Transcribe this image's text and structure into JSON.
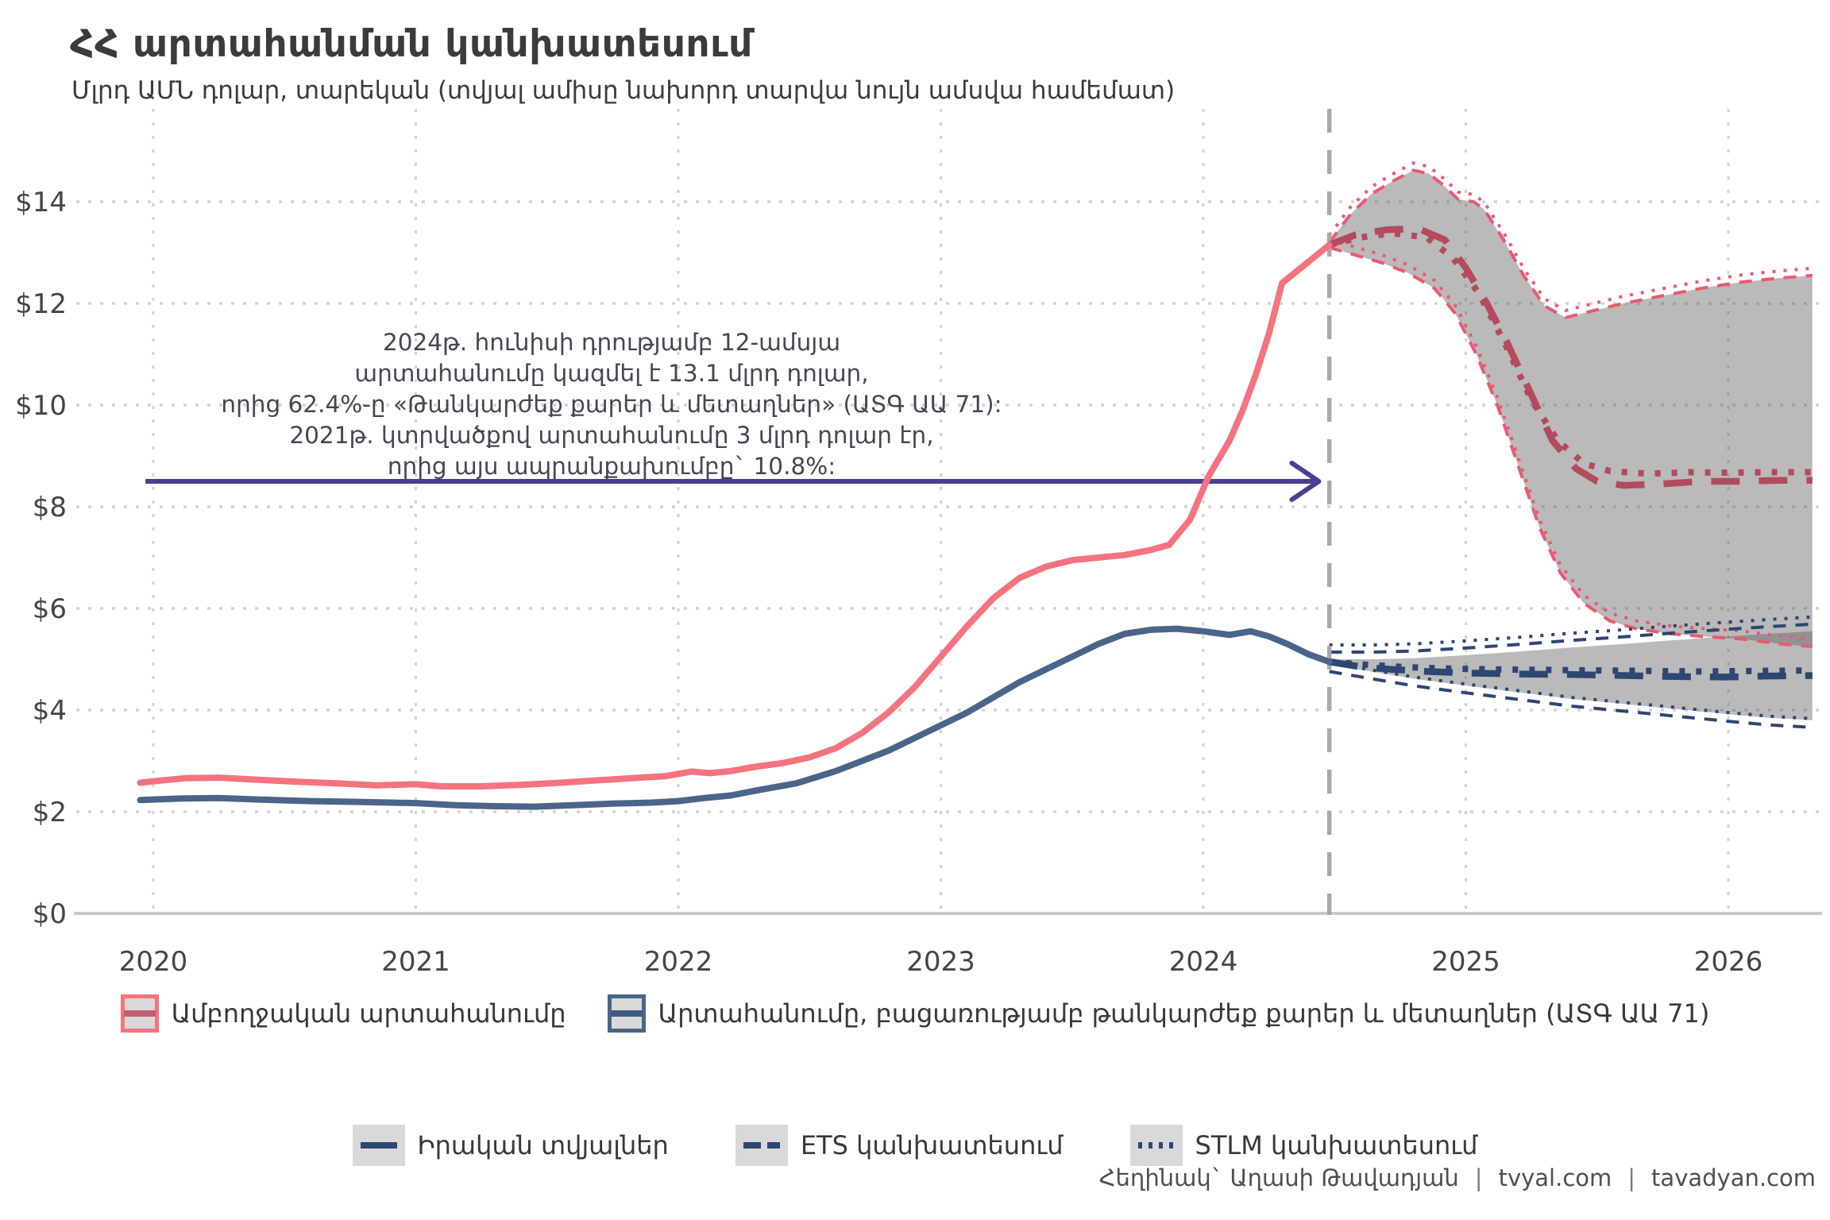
{
  "header": {
    "title": "ՀՀ արտահանման կանխատեսում",
    "subtitle": "Մլրդ ԱՄՆ դոլար, տարեկան (տվյալ ամիսը նախորդ տարվա նույն ամսվա համեմատ)"
  },
  "annotation": {
    "lines": [
      "2024թ. հունիսի դրությամբ 12-ամսյա",
      "արտահանումը կազմել է 13.1 մլրդ դոլար,",
      "որից 62.4%-ը «Թանկարժեք քարեր և մետաղներ» (ԱՏԳ ԱԱ 71):",
      "2021թ. կտրվածքով արտահանումը 3 մլրդ դոլար էր,",
      "որից այս ապրանքախումբը` 10.8%:"
    ]
  },
  "legend_main": {
    "items": [
      {
        "label": "Ամբողջական արտահանումը",
        "border_color": "#f4737f",
        "line_color": "#c2606f"
      },
      {
        "label": "Արտահանումը, բացառությամբ թանկարժեք քարեր և մետաղներ (ԱՏԳ ԱԱ 71)",
        "border_color": "#4b6489",
        "line_color": "#3f5a87"
      }
    ]
  },
  "legend_forecast": {
    "items": [
      {
        "label": "Իրական տվյալներ",
        "style": "solid"
      },
      {
        "label": "ETS կանխատեսում",
        "style": "dashed"
      },
      {
        "label": "STLM կանխատեսում",
        "style": "dotted"
      }
    ]
  },
  "footer": {
    "author": "Հեղինակ` Աղասի Թավադյան",
    "separator": "|",
    "links": [
      "tvyal.com",
      "tavadyan.com"
    ]
  },
  "colors": {
    "total_line": "#f4737f",
    "total_forecast": "#b34b5d",
    "band_edge_red": "#ea5a70",
    "excl_line": "#4b6489",
    "excl_forecast": "#2e4672",
    "band_fill": "rgba(90,90,90,0.42)",
    "grid": "#d2d2d2",
    "axis_line": "#c9c9c9",
    "divider": "#a8a8a8",
    "arrow": "#4e3d92",
    "tick_text": "#454545"
  },
  "chart_data": {
    "type": "line",
    "title": "ՀՀ արտահանման կանխատեսում",
    "ylabel": "Մլրդ ԱՄՆ դոլար",
    "xlim": [
      2019.85,
      2026.4
    ],
    "ylim": [
      0,
      15.3
    ],
    "grid": true,
    "forecast_start": 2024.48,
    "arrow": {
      "y_value": 8.5,
      "x_start": 2019.97,
      "x_end": 2024.44
    },
    "x_ticks": [
      {
        "v": 2020,
        "label": "2020"
      },
      {
        "v": 2021,
        "label": "2021"
      },
      {
        "v": 2022,
        "label": "2022"
      },
      {
        "v": 2023,
        "label": "2023"
      },
      {
        "v": 2024,
        "label": "2024"
      },
      {
        "v": 2025,
        "label": "2025"
      },
      {
        "v": 2026,
        "label": "2026"
      }
    ],
    "y_ticks": [
      {
        "v": 0,
        "label": "$0"
      },
      {
        "v": 2,
        "label": "$2"
      },
      {
        "v": 4,
        "label": "$4"
      },
      {
        "v": 6,
        "label": "$6"
      },
      {
        "v": 8,
        "label": "$8"
      },
      {
        "v": 10,
        "label": "$10"
      },
      {
        "v": 12,
        "label": "$12"
      },
      {
        "v": 14,
        "label": "$14"
      }
    ],
    "series": [
      {
        "name": "total_exports_actual",
        "points": [
          [
            2019.95,
            2.57
          ],
          [
            2020.0,
            2.6
          ],
          [
            2020.12,
            2.66
          ],
          [
            2020.25,
            2.67
          ],
          [
            2020.4,
            2.63
          ],
          [
            2020.55,
            2.59
          ],
          [
            2020.7,
            2.56
          ],
          [
            2020.85,
            2.52
          ],
          [
            2021.0,
            2.54
          ],
          [
            2021.1,
            2.5
          ],
          [
            2021.25,
            2.5
          ],
          [
            2021.4,
            2.53
          ],
          [
            2021.55,
            2.57
          ],
          [
            2021.7,
            2.62
          ],
          [
            2021.85,
            2.67
          ],
          [
            2021.95,
            2.7
          ],
          [
            2022.05,
            2.79
          ],
          [
            2022.12,
            2.76
          ],
          [
            2022.2,
            2.8
          ],
          [
            2022.3,
            2.89
          ],
          [
            2022.4,
            2.96
          ],
          [
            2022.5,
            3.07
          ],
          [
            2022.6,
            3.25
          ],
          [
            2022.7,
            3.55
          ],
          [
            2022.8,
            3.95
          ],
          [
            2022.9,
            4.45
          ],
          [
            2023.0,
            5.05
          ],
          [
            2023.1,
            5.65
          ],
          [
            2023.2,
            6.2
          ],
          [
            2023.3,
            6.6
          ],
          [
            2023.4,
            6.82
          ],
          [
            2023.5,
            6.95
          ],
          [
            2023.6,
            7.0
          ],
          [
            2023.7,
            7.05
          ],
          [
            2023.8,
            7.15
          ],
          [
            2023.87,
            7.25
          ],
          [
            2023.95,
            7.75
          ],
          [
            2024.02,
            8.6
          ],
          [
            2024.06,
            8.95
          ],
          [
            2024.1,
            9.3
          ],
          [
            2024.15,
            9.9
          ],
          [
            2024.2,
            10.6
          ],
          [
            2024.25,
            11.4
          ],
          [
            2024.3,
            12.4
          ],
          [
            2024.36,
            12.65
          ],
          [
            2024.42,
            12.9
          ],
          [
            2024.48,
            13.15
          ]
        ]
      },
      {
        "name": "excl_gems_actual",
        "points": [
          [
            2019.95,
            2.23
          ],
          [
            2020.1,
            2.26
          ],
          [
            2020.25,
            2.27
          ],
          [
            2020.4,
            2.24
          ],
          [
            2020.6,
            2.21
          ],
          [
            2020.8,
            2.19
          ],
          [
            2021.0,
            2.17
          ],
          [
            2021.15,
            2.13
          ],
          [
            2021.3,
            2.11
          ],
          [
            2021.45,
            2.1
          ],
          [
            2021.6,
            2.13
          ],
          [
            2021.75,
            2.16
          ],
          [
            2021.9,
            2.18
          ],
          [
            2022.0,
            2.21
          ],
          [
            2022.1,
            2.27
          ],
          [
            2022.2,
            2.32
          ],
          [
            2022.3,
            2.42
          ],
          [
            2022.45,
            2.56
          ],
          [
            2022.6,
            2.8
          ],
          [
            2022.7,
            3.0
          ],
          [
            2022.8,
            3.2
          ],
          [
            2022.9,
            3.45
          ],
          [
            2023.0,
            3.7
          ],
          [
            2023.1,
            3.95
          ],
          [
            2023.2,
            4.25
          ],
          [
            2023.3,
            4.55
          ],
          [
            2023.4,
            4.8
          ],
          [
            2023.5,
            5.05
          ],
          [
            2023.6,
            5.3
          ],
          [
            2023.7,
            5.5
          ],
          [
            2023.8,
            5.58
          ],
          [
            2023.9,
            5.6
          ],
          [
            2024.0,
            5.55
          ],
          [
            2024.1,
            5.48
          ],
          [
            2024.18,
            5.55
          ],
          [
            2024.25,
            5.45
          ],
          [
            2024.32,
            5.3
          ],
          [
            2024.4,
            5.1
          ],
          [
            2024.48,
            4.95
          ]
        ]
      },
      {
        "name": "total_ets_forecast",
        "points": [
          [
            2024.48,
            13.15
          ],
          [
            2024.58,
            13.35
          ],
          [
            2024.7,
            13.45
          ],
          [
            2024.82,
            13.47
          ],
          [
            2024.92,
            13.25
          ],
          [
            2025.0,
            12.7
          ],
          [
            2025.08,
            12.0
          ],
          [
            2025.16,
            11.2
          ],
          [
            2025.25,
            10.2
          ],
          [
            2025.33,
            9.3
          ],
          [
            2025.42,
            8.75
          ],
          [
            2025.5,
            8.5
          ],
          [
            2025.6,
            8.42
          ],
          [
            2025.75,
            8.45
          ],
          [
            2025.9,
            8.5
          ],
          [
            2026.05,
            8.5
          ],
          [
            2026.2,
            8.52
          ],
          [
            2026.32,
            8.52
          ]
        ]
      },
      {
        "name": "total_stlm_forecast",
        "points": [
          [
            2024.48,
            13.15
          ],
          [
            2024.6,
            13.3
          ],
          [
            2024.72,
            13.38
          ],
          [
            2024.85,
            13.3
          ],
          [
            2024.95,
            12.9
          ],
          [
            2025.05,
            12.2
          ],
          [
            2025.15,
            11.2
          ],
          [
            2025.25,
            10.1
          ],
          [
            2025.35,
            9.3
          ],
          [
            2025.45,
            8.85
          ],
          [
            2025.55,
            8.7
          ],
          [
            2025.7,
            8.65
          ],
          [
            2025.85,
            8.68
          ],
          [
            2026.0,
            8.67
          ],
          [
            2026.15,
            8.68
          ],
          [
            2026.32,
            8.68
          ]
        ]
      },
      {
        "name": "excl_ets_forecast",
        "points": [
          [
            2024.48,
            4.95
          ],
          [
            2024.6,
            4.85
          ],
          [
            2024.72,
            4.8
          ],
          [
            2024.85,
            4.76
          ],
          [
            2025.0,
            4.73
          ],
          [
            2025.2,
            4.71
          ],
          [
            2025.4,
            4.7
          ],
          [
            2025.6,
            4.68
          ],
          [
            2025.8,
            4.66
          ],
          [
            2026.0,
            4.65
          ],
          [
            2026.15,
            4.67
          ],
          [
            2026.32,
            4.68
          ]
        ]
      },
      {
        "name": "excl_stlm_forecast",
        "points": [
          [
            2024.48,
            4.95
          ],
          [
            2024.6,
            4.9
          ],
          [
            2024.75,
            4.85
          ],
          [
            2024.9,
            4.82
          ],
          [
            2025.1,
            4.8
          ],
          [
            2025.3,
            4.79
          ],
          [
            2025.5,
            4.78
          ],
          [
            2025.7,
            4.77
          ],
          [
            2025.9,
            4.76
          ],
          [
            2026.1,
            4.77
          ],
          [
            2026.32,
            4.78
          ]
        ]
      }
    ],
    "bands": [
      {
        "name": "total_forecast_interval",
        "upper": [
          [
            2024.48,
            13.2
          ],
          [
            2024.56,
            13.75
          ],
          [
            2024.64,
            14.15
          ],
          [
            2024.72,
            14.4
          ],
          [
            2024.8,
            14.62
          ],
          [
            2024.86,
            14.55
          ],
          [
            2024.92,
            14.3
          ],
          [
            2024.97,
            14.05
          ],
          [
            2025.03,
            14.0
          ],
          [
            2025.07,
            13.85
          ],
          [
            2025.15,
            13.2
          ],
          [
            2025.22,
            12.55
          ],
          [
            2025.3,
            11.95
          ],
          [
            2025.38,
            11.72
          ],
          [
            2025.48,
            11.85
          ],
          [
            2025.6,
            12.0
          ],
          [
            2025.75,
            12.15
          ],
          [
            2025.9,
            12.3
          ],
          [
            2026.05,
            12.42
          ],
          [
            2026.2,
            12.5
          ],
          [
            2026.32,
            12.55
          ]
        ],
        "lower": [
          [
            2024.48,
            13.1
          ],
          [
            2024.58,
            12.95
          ],
          [
            2024.68,
            12.8
          ],
          [
            2024.78,
            12.6
          ],
          [
            2024.88,
            12.3
          ],
          [
            2024.96,
            11.8
          ],
          [
            2025.04,
            11.0
          ],
          [
            2025.12,
            10.0
          ],
          [
            2025.2,
            8.8
          ],
          [
            2025.28,
            7.6
          ],
          [
            2025.36,
            6.7
          ],
          [
            2025.45,
            6.1
          ],
          [
            2025.55,
            5.75
          ],
          [
            2025.65,
            5.6
          ],
          [
            2025.78,
            5.5
          ],
          [
            2025.9,
            5.45
          ],
          [
            2026.05,
            5.4
          ],
          [
            2026.2,
            5.3
          ],
          [
            2026.32,
            5.25
          ]
        ]
      },
      {
        "name": "excl_forecast_interval",
        "upper": [
          [
            2024.48,
            5.0
          ],
          [
            2024.65,
            5.0
          ],
          [
            2024.8,
            5.02
          ],
          [
            2025.0,
            5.08
          ],
          [
            2025.2,
            5.15
          ],
          [
            2025.4,
            5.23
          ],
          [
            2025.6,
            5.3
          ],
          [
            2025.8,
            5.38
          ],
          [
            2026.0,
            5.45
          ],
          [
            2026.15,
            5.5
          ],
          [
            2026.32,
            5.55
          ]
        ],
        "lower": [
          [
            2024.48,
            4.9
          ],
          [
            2024.65,
            4.75
          ],
          [
            2024.8,
            4.62
          ],
          [
            2025.0,
            4.48
          ],
          [
            2025.2,
            4.35
          ],
          [
            2025.4,
            4.22
          ],
          [
            2025.6,
            4.12
          ],
          [
            2025.8,
            4.02
          ],
          [
            2026.0,
            3.92
          ],
          [
            2026.15,
            3.85
          ],
          [
            2026.32,
            3.8
          ]
        ]
      }
    ]
  }
}
